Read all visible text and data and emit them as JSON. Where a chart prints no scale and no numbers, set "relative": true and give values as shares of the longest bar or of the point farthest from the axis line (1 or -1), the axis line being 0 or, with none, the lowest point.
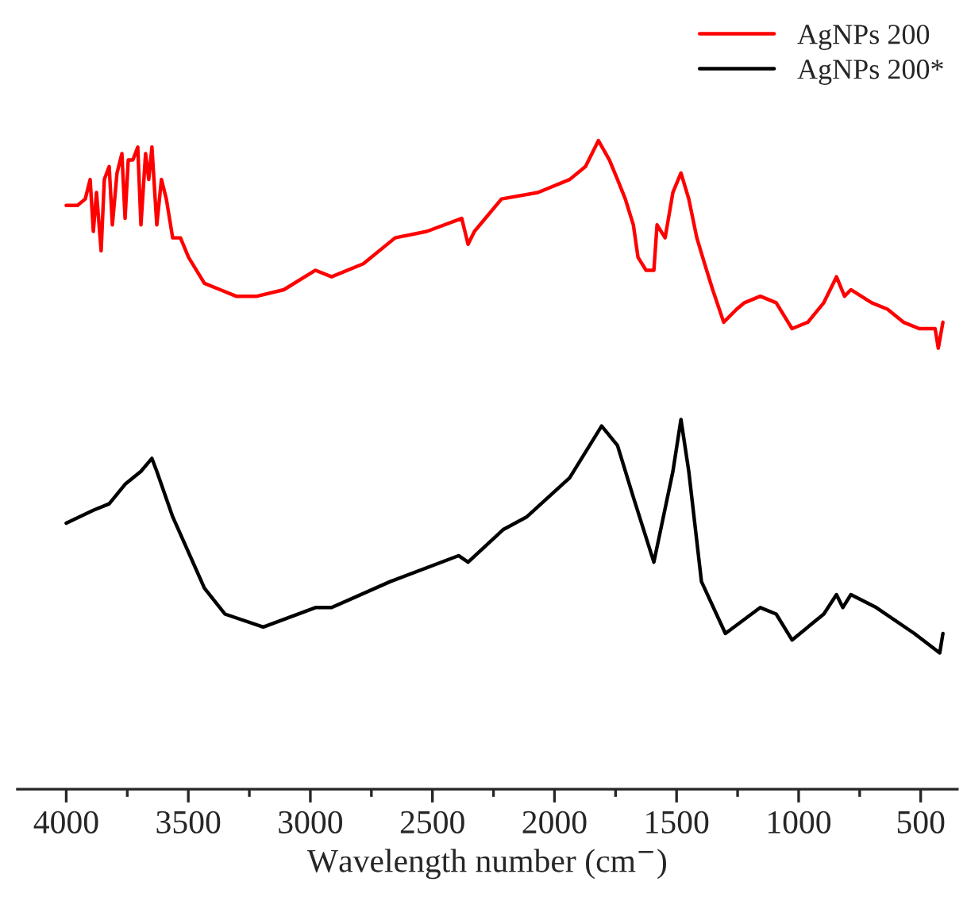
{
  "chart_data": {
    "type": "line",
    "relative": true,
    "xlabel": "Wavelength number (cm$^{−}$)",
    "xlim": [
      4200,
      350
    ],
    "xticks": [
      4000,
      {
        "value": 3750,
        "label": null
      },
      3500,
      {
        "value": 3250,
        "label": null
      },
      3000,
      {
        "value": 2750,
        "label": null
      },
      2500,
      {
        "value": 2250,
        "label": null
      },
      2000,
      {
        "value": 1750,
        "label": null
      },
      1500,
      {
        "value": 1250,
        "label": null
      },
      1000,
      {
        "value": 750,
        "label": null
      },
      500
    ],
    "tick_labels": "x",
    "grid": false,
    "legend": "top right",
    "line_style": "solid",
    "marker": "none",
    "series": [
      {
        "name": "AgNPs 200",
        "color": "#ff0000",
        "x": [
          4000,
          3954,
          3922,
          3902,
          3889,
          3876,
          3857,
          3844,
          3824,
          3811,
          3792,
          3772,
          3759,
          3746,
          3727,
          3707,
          3694,
          3675,
          3662,
          3649,
          3629,
          3610,
          3590,
          3564,
          3532,
          3499,
          3434,
          3369,
          3304,
          3219,
          3109,
          2979,
          2913,
          2783,
          2653,
          2523,
          2380,
          2354,
          2328,
          2217,
          2068,
          1938,
          1873,
          1820,
          1775,
          1742,
          1710,
          1677,
          1658,
          1625,
          1593,
          1580,
          1547,
          1515,
          1482,
          1450,
          1417,
          1385,
          1352,
          1307,
          1254,
          1222,
          1157,
          1092,
          1027,
          962,
          897,
          845,
          812,
          786,
          701,
          636,
          571,
          506,
          474,
          441,
          428,
          409
        ],
        "values": [
          0.9,
          0.9,
          0.91,
          0.94,
          0.86,
          0.92,
          0.83,
          0.94,
          0.96,
          0.87,
          0.95,
          0.98,
          0.88,
          0.97,
          0.97,
          0.99,
          0.87,
          0.98,
          0.94,
          0.99,
          0.87,
          0.94,
          0.91,
          0.85,
          0.85,
          0.82,
          0.78,
          0.77,
          0.76,
          0.76,
          0.77,
          0.8,
          0.79,
          0.81,
          0.85,
          0.86,
          0.88,
          0.84,
          0.86,
          0.91,
          0.92,
          0.94,
          0.96,
          1.0,
          0.97,
          0.94,
          0.91,
          0.87,
          0.82,
          0.8,
          0.8,
          0.87,
          0.85,
          0.92,
          0.95,
          0.91,
          0.85,
          0.81,
          0.77,
          0.72,
          0.74,
          0.75,
          0.76,
          0.75,
          0.71,
          0.72,
          0.75,
          0.79,
          0.76,
          0.77,
          0.75,
          0.74,
          0.72,
          0.71,
          0.71,
          0.71,
          0.68,
          0.72
        ]
      },
      {
        "name": "AgNPs 200*",
        "color": "#000000",
        "x": [
          4000,
          3889,
          3824,
          3759,
          3694,
          3649,
          3629,
          3564,
          3434,
          3350,
          3193,
          2979,
          2913,
          2673,
          2393,
          2354,
          2211,
          2113,
          1938,
          1807,
          1742,
          1677,
          1593,
          1515,
          1482,
          1450,
          1398,
          1300,
          1157,
          1092,
          1027,
          897,
          845,
          819,
          786,
          682,
          526,
          422,
          409
        ],
        "values": [
          0.41,
          0.43,
          0.44,
          0.47,
          0.49,
          0.51,
          0.49,
          0.42,
          0.31,
          0.27,
          0.25,
          0.28,
          0.28,
          0.32,
          0.36,
          0.35,
          0.4,
          0.42,
          0.48,
          0.56,
          0.53,
          0.45,
          0.35,
          0.49,
          0.57,
          0.49,
          0.32,
          0.24,
          0.28,
          0.27,
          0.23,
          0.27,
          0.3,
          0.28,
          0.3,
          0.28,
          0.24,
          0.21,
          0.24
        ]
      }
    ]
  }
}
